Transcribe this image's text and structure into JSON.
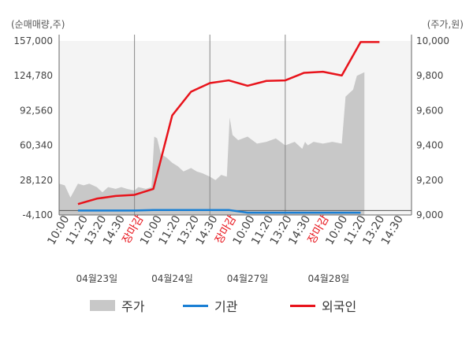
{
  "units": {
    "left": "(순매매량,주)",
    "right": "(주가,원)"
  },
  "legend": [
    {
      "label": "주가",
      "type": "area",
      "color": "#c8c8c8"
    },
    {
      "label": "기관",
      "type": "line",
      "color": "#1a7fd4"
    },
    {
      "label": "외국인",
      "type": "line",
      "color": "#e8131b"
    }
  ],
  "chart_data": {
    "type": "line",
    "left_axis": {
      "ticks": [
        "157,000",
        "124,780",
        "92,560",
        "60,340",
        "28,120",
        "-4,100"
      ],
      "ylim": [
        -4100,
        157000
      ]
    },
    "right_axis": {
      "ticks": [
        "10,000",
        "9,800",
        "9,600",
        "9,400",
        "9,200",
        "9,000"
      ],
      "ylim": [
        9000,
        10000
      ]
    },
    "x_tick_labels": [
      "10:00",
      "11:20",
      "13:20",
      "14:30",
      "장마감",
      "10:00",
      "11:20",
      "13:20",
      "14:30",
      "장마감",
      "10:00",
      "11:20",
      "13:20",
      "14:30",
      "장마감",
      "10:00",
      "11:20",
      "13:20",
      "14:30"
    ],
    "x_tick_highlight_color": "#e8131b",
    "dates": [
      "04월23일",
      "04월24일",
      "04월27일",
      "04월28일"
    ],
    "series": [
      {
        "name": "외국인",
        "axis": "left",
        "color": "#e8131b",
        "x": [
          1,
          2,
          3,
          4,
          5,
          6,
          7,
          8,
          9,
          10,
          11,
          12,
          13,
          14,
          15,
          16,
          17
        ],
        "values": [
          6000,
          11000,
          13500,
          14500,
          20000,
          88000,
          110000,
          118000,
          120500,
          115500,
          120000,
          120500,
          127500,
          128500,
          125000,
          156000,
          156000
        ]
      },
      {
        "name": "기관",
        "axis": "left",
        "color": "#1a7fd4",
        "x": [
          1,
          2,
          3,
          4,
          5,
          6,
          7,
          8,
          9,
          10,
          11,
          12,
          13,
          14,
          15,
          16
        ],
        "values": [
          0,
          0,
          0,
          0,
          500,
          500,
          500,
          500,
          500,
          -2000,
          -2000,
          -2000,
          -2000,
          -2000,
          -2000,
          -2000
        ]
      },
      {
        "name": "주가",
        "axis": "right",
        "type": "area",
        "color": "#c8c8c8",
        "x": [
          0,
          0.3,
          0.6,
          1,
          1.3,
          1.6,
          2,
          2.3,
          2.6,
          3,
          3.3,
          3.6,
          4,
          4.2,
          4.6,
          4.9,
          5.05,
          5.2,
          5.4,
          5.7,
          6,
          6.3,
          6.6,
          7,
          7.3,
          7.6,
          8,
          8.3,
          8.6,
          8.9,
          9.05,
          9.2,
          9.5,
          10,
          10.5,
          11,
          11.5,
          12,
          12.5,
          12.9,
          13.05,
          13.2,
          13.5,
          14,
          14.5,
          15,
          15.2,
          15.4,
          15.6,
          15.8,
          16.2
        ],
        "values": [
          9180,
          9170,
          9100,
          9180,
          9170,
          9180,
          9160,
          9130,
          9160,
          9150,
          9160,
          9150,
          9140,
          9160,
          9150,
          9160,
          9450,
          9440,
          9350,
          9330,
          9300,
          9280,
          9250,
          9270,
          9250,
          9240,
          9220,
          9200,
          9230,
          9220,
          9560,
          9460,
          9430,
          9450,
          9410,
          9420,
          9440,
          9400,
          9420,
          9380,
          9420,
          9400,
          9420,
          9410,
          9420,
          9410,
          9680,
          9700,
          9720,
          9800,
          9820
        ]
      }
    ],
    "x_range": [
      0,
      18.7
    ],
    "grid": false,
    "legend_position": "bottom"
  }
}
